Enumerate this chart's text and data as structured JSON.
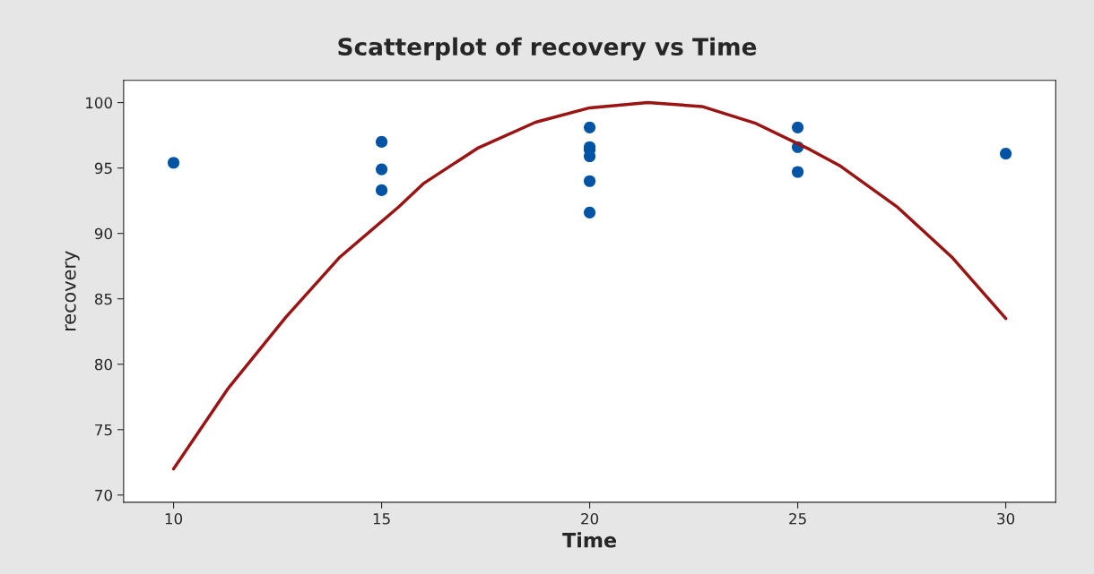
{
  "chart_data": {
    "type": "scatter",
    "title": "Scatterplot of recovery vs Time",
    "xlabel": "Time",
    "ylabel": "recovery",
    "xlim": [
      8.8,
      31.2
    ],
    "ylim": [
      69.45,
      101.7
    ],
    "xticks": [
      10,
      15,
      20,
      25,
      30
    ],
    "yticks": [
      70,
      75,
      80,
      85,
      90,
      95,
      100
    ],
    "grid": false,
    "legend": false,
    "series": [
      {
        "marker": "circle",
        "color": "#0054a6",
        "x": [
          10,
          15,
          15,
          15,
          20,
          20,
          20,
          20,
          20,
          20,
          25,
          25,
          25,
          30
        ],
        "values": [
          95.4,
          97.0,
          94.9,
          93.3,
          98.1,
          96.6,
          96.4,
          95.9,
          94.0,
          91.6,
          98.1,
          96.6,
          94.7,
          96.1
        ]
      },
      {
        "type": "line",
        "color": "#9b1414",
        "line_style": "solid",
        "x": [
          10,
          11.3,
          12.7,
          14,
          15.4,
          16,
          17.3,
          18.7,
          20,
          21.4,
          22.7,
          24,
          25.3,
          26,
          27.4,
          28.7,
          30
        ],
        "values": [
          72.0,
          78.1,
          83.6,
          88.2,
          92.0,
          93.8,
          96.5,
          98.5,
          99.6,
          100.0,
          99.7,
          98.4,
          96.4,
          95.2,
          92.0,
          88.2,
          83.5
        ]
      }
    ]
  }
}
